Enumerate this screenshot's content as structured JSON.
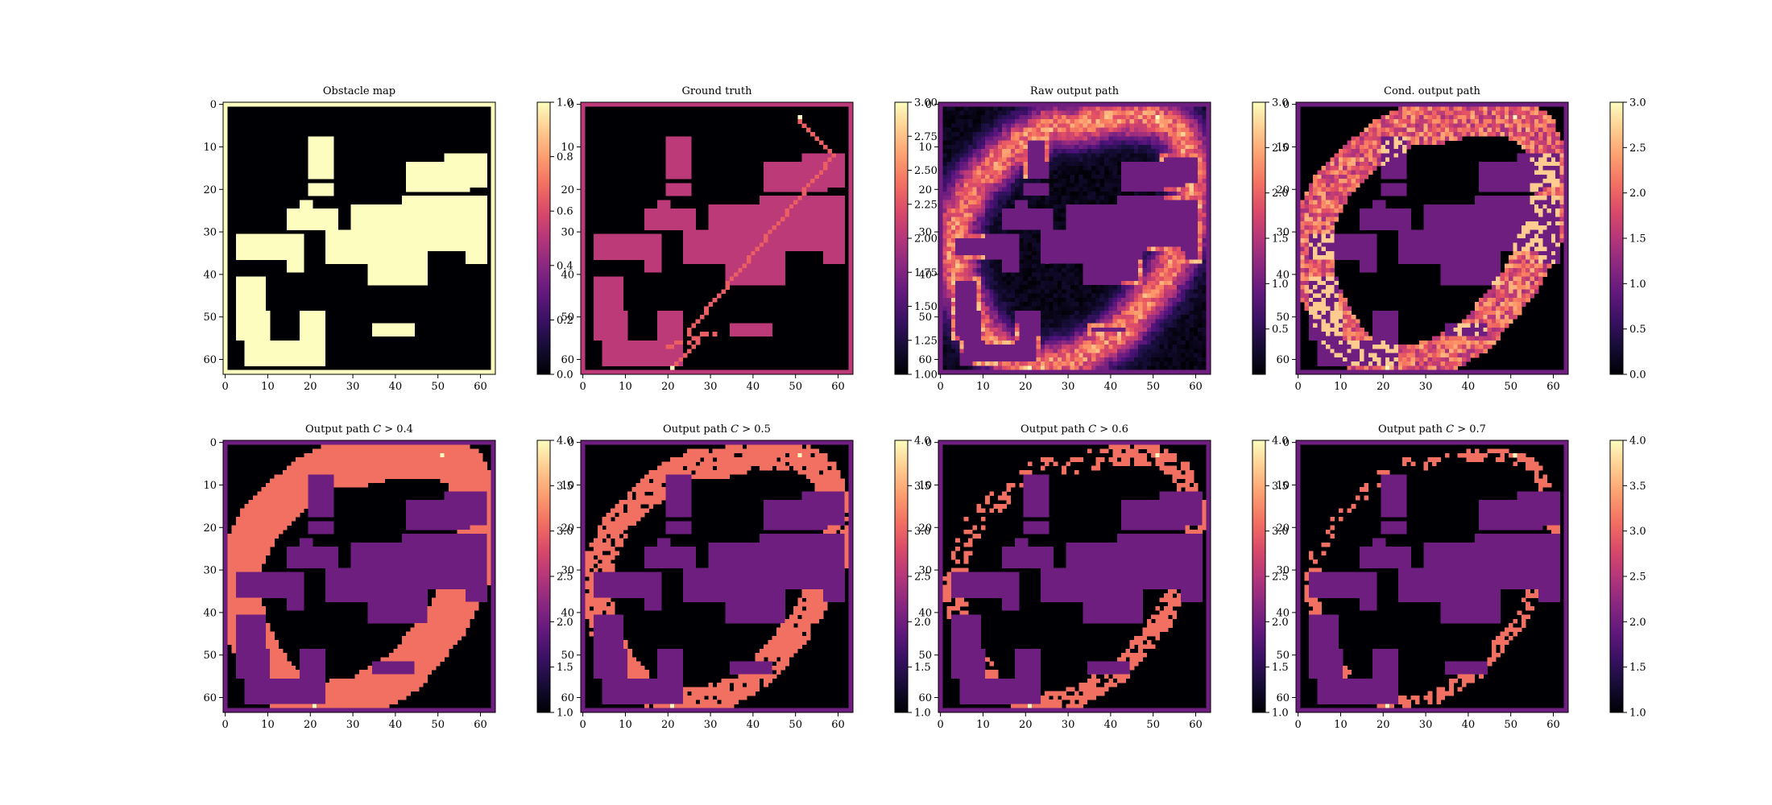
{
  "figure": {
    "colormap": [
      "#000004",
      "#3b0f70",
      "#8c2981",
      "#de4968",
      "#fe9f6d",
      "#fcfdbf"
    ]
  },
  "chart_data": [
    {
      "type": "heatmap",
      "title": "Obstacle map",
      "panel": "obstacle",
      "x_ticks": [
        "0",
        "10",
        "20",
        "30",
        "40",
        "50",
        "60"
      ],
      "y_ticks": [
        "0",
        "10",
        "20",
        "30",
        "40",
        "50",
        "60"
      ],
      "grid_size": 64,
      "colorbar_range": [
        0,
        1
      ],
      "colorbar_ticks": [
        "0.0",
        "0.2",
        "0.4",
        "0.6",
        "0.8",
        "1.0"
      ],
      "values": {
        "obstacle": 1,
        "free": 0
      }
    },
    {
      "type": "heatmap",
      "title": "Ground truth",
      "panel": "gt",
      "x_ticks": [
        "0",
        "10",
        "20",
        "30",
        "40",
        "50",
        "60"
      ],
      "y_ticks": [
        "0",
        "10",
        "20",
        "30",
        "40",
        "50",
        "60"
      ],
      "grid_size": 64,
      "colorbar_range": [
        1,
        3
      ],
      "colorbar_ticks": [
        "1.00",
        "1.25",
        "1.50",
        "1.75",
        "2.00",
        "2.25",
        "2.50",
        "2.75",
        "3.00"
      ],
      "values": {
        "free": 1,
        "obstacle": 2,
        "path": 3
      }
    },
    {
      "type": "heatmap",
      "title": "Raw output path",
      "panel": "raw",
      "x_ticks": [
        "0",
        "10",
        "20",
        "30",
        "40",
        "50",
        "60"
      ],
      "y_ticks": [
        "0",
        "10",
        "20",
        "30",
        "40",
        "50",
        "60"
      ],
      "grid_size": 64,
      "colorbar_range": [
        0,
        3
      ],
      "colorbar_ticks": [
        "0.5",
        "1.0",
        "1.5",
        "2.0",
        "2.5",
        "3.0"
      ]
    },
    {
      "type": "heatmap",
      "title": "Cond. output path",
      "panel": "cond",
      "x_ticks": [
        "0",
        "10",
        "20",
        "30",
        "40",
        "50",
        "60"
      ],
      "y_ticks": [
        "0",
        "10",
        "20",
        "30",
        "40",
        "50",
        "60"
      ],
      "grid_size": 64,
      "colorbar_range": [
        0,
        3
      ],
      "colorbar_ticks": [
        "0.0",
        "0.5",
        "1.0",
        "1.5",
        "2.0",
        "2.5",
        "3.0"
      ]
    },
    {
      "type": "heatmap",
      "title_prefix": "Output path",
      "threshold": "0.4",
      "panel": "thr",
      "x_ticks": [
        "0",
        "10",
        "20",
        "30",
        "40",
        "50",
        "60"
      ],
      "y_ticks": [
        "0",
        "10",
        "20",
        "30",
        "40",
        "50",
        "60"
      ],
      "grid_size": 64,
      "colorbar_range": [
        1,
        4
      ],
      "colorbar_ticks": [
        "1.0",
        "1.5",
        "2.0",
        "2.5",
        "3.0",
        "3.5",
        "4.0"
      ]
    },
    {
      "type": "heatmap",
      "title_prefix": "Output path",
      "threshold": "0.5",
      "panel": "thr",
      "x_ticks": [
        "0",
        "10",
        "20",
        "30",
        "40",
        "50",
        "60"
      ],
      "y_ticks": [
        "0",
        "10",
        "20",
        "30",
        "40",
        "50",
        "60"
      ],
      "grid_size": 64,
      "colorbar_range": [
        1,
        4
      ],
      "colorbar_ticks": [
        "1.0",
        "1.5",
        "2.0",
        "2.5",
        "3.0",
        "3.5",
        "4.0"
      ]
    },
    {
      "type": "heatmap",
      "title_prefix": "Output path",
      "threshold": "0.6",
      "panel": "thr",
      "x_ticks": [
        "0",
        "10",
        "20",
        "30",
        "40",
        "50",
        "60"
      ],
      "y_ticks": [
        "0",
        "10",
        "20",
        "30",
        "40",
        "50",
        "60"
      ],
      "grid_size": 64,
      "colorbar_range": [
        1,
        4
      ],
      "colorbar_ticks": [
        "1.0",
        "1.5",
        "2.0",
        "2.5",
        "3.0",
        "3.5",
        "4.0"
      ]
    },
    {
      "type": "heatmap",
      "title_prefix": "Output path",
      "threshold": "0.7",
      "panel": "thr",
      "x_ticks": [
        "0",
        "10",
        "20",
        "30",
        "40",
        "50",
        "60"
      ],
      "y_ticks": [
        "0",
        "10",
        "20",
        "30",
        "40",
        "50",
        "60"
      ],
      "grid_size": 64,
      "colorbar_range": [
        1,
        4
      ],
      "colorbar_ticks": [
        "1.0",
        "1.5",
        "2.0",
        "2.5",
        "3.0",
        "3.5",
        "4.0"
      ]
    }
  ]
}
